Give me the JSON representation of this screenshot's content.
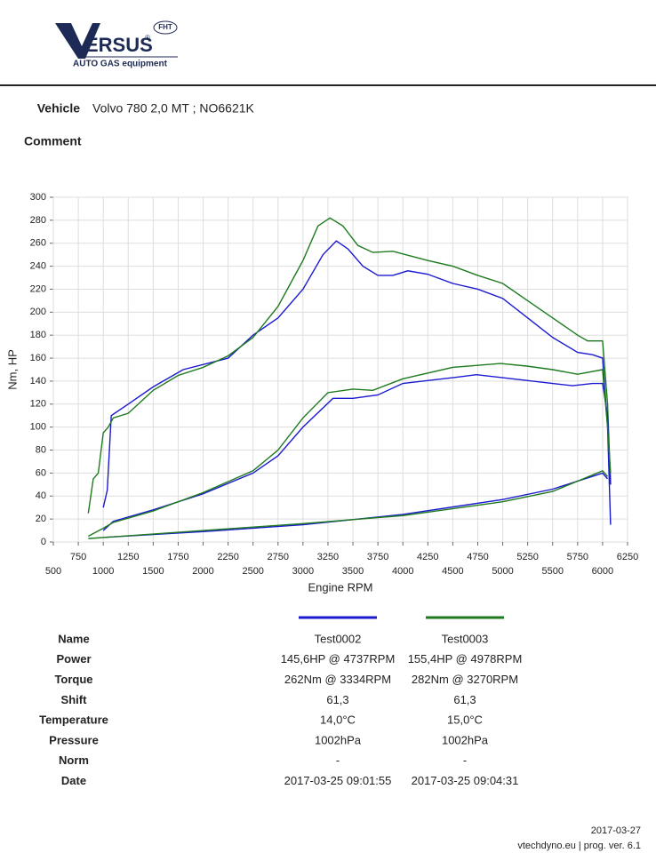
{
  "header": {
    "logo": "ERSUS",
    "badge": "FHT",
    "tagline": "AUTO GAS equipment",
    "reg": "®"
  },
  "vehicle": {
    "label": "Vehicle",
    "value": "Volvo 780 2,0 MT ; NO6621K"
  },
  "comment": {
    "label": "Comment"
  },
  "chart_data": {
    "type": "line",
    "xlabel": "Engine RPM",
    "ylabel": "Nm, HP",
    "grid": true,
    "xlim": [
      500,
      6250
    ],
    "ylim": [
      0,
      300
    ],
    "xticks": [
      500,
      750,
      1000,
      1250,
      1500,
      1750,
      2000,
      2250,
      2500,
      2750,
      3000,
      3250,
      3500,
      3750,
      4000,
      4250,
      4500,
      4750,
      5000,
      5250,
      5500,
      5750,
      6000,
      6250
    ],
    "yticks": [
      0,
      20,
      40,
      60,
      80,
      100,
      120,
      140,
      160,
      180,
      200,
      220,
      240,
      260,
      280,
      300
    ],
    "series": [
      {
        "color": "#1a1ad0",
        "x": [
          1000,
          1040,
          1080,
          1250,
          1500,
          1800,
          2250,
          2500,
          2750,
          3000,
          3200,
          3334,
          3450,
          3600,
          3750,
          3900,
          4050,
          4250,
          4500,
          4750,
          5000,
          5250,
          5500,
          5750,
          5900,
          6000,
          6050,
          6080
        ],
        "values": [
          30,
          45,
          110,
          120,
          135,
          150,
          160,
          180,
          195,
          220,
          250,
          262,
          255,
          240,
          232,
          232,
          236,
          233,
          225,
          220,
          212,
          195,
          178,
          165,
          163,
          160,
          100,
          15
        ]
      },
      {
        "color": "#1e7a1e",
        "x": [
          850,
          900,
          950,
          1000,
          1050,
          1100,
          1250,
          1500,
          1750,
          2000,
          2250,
          2500,
          2750,
          3000,
          3150,
          3270,
          3400,
          3550,
          3700,
          3900,
          4250,
          4500,
          4750,
          5000,
          5250,
          5500,
          5750,
          5850,
          6000,
          6050,
          6080
        ],
        "values": [
          25,
          55,
          60,
          95,
          100,
          108,
          112,
          132,
          145,
          152,
          162,
          178,
          205,
          245,
          275,
          282,
          275,
          258,
          252,
          253,
          245,
          240,
          232,
          225,
          210,
          195,
          180,
          175,
          175,
          120,
          50
        ]
      },
      {
        "color": "#1a1ad0",
        "x": [
          1000,
          1100,
          1500,
          2000,
          2500,
          2750,
          3000,
          3300,
          3500,
          3750,
          4000,
          4500,
          4737,
          5000,
          5500,
          5700,
          5900,
          6000,
          6050,
          6080
        ],
        "values": [
          10,
          18,
          28,
          42,
          60,
          75,
          100,
          125,
          125,
          128,
          138,
          143,
          145.6,
          143,
          138,
          136,
          138,
          138,
          110,
          50
        ]
      },
      {
        "color": "#1e7a1e",
        "x": [
          850,
          1000,
          1100,
          1500,
          2000,
          2500,
          2750,
          3000,
          3250,
          3500,
          3700,
          4000,
          4500,
          4978,
          5250,
          5500,
          5750,
          6000,
          6050,
          6080
        ],
        "values": [
          5,
          12,
          17,
          27,
          43,
          62,
          80,
          108,
          130,
          133,
          132,
          142,
          152,
          155.4,
          153,
          150,
          146,
          150,
          100,
          60
        ]
      },
      {
        "color": "#1a1ad0",
        "x": [
          1000,
          2000,
          3000,
          4000,
          5000,
          5500,
          6000,
          6050
        ],
        "values": [
          4,
          9,
          15,
          24,
          37,
          46,
          60,
          55
        ]
      },
      {
        "color": "#1e7a1e",
        "x": [
          850,
          2000,
          3000,
          4000,
          5000,
          5500,
          6000,
          6050
        ],
        "values": [
          3,
          10,
          16,
          23,
          35,
          44,
          62,
          57
        ]
      }
    ]
  },
  "table": {
    "rows": [
      [
        "Name",
        "Test0002",
        "Test0003"
      ],
      [
        "Power",
        "145,6HP @  4737RPM",
        "155,4HP @  4978RPM"
      ],
      [
        "Torque",
        "262Nm @ 3334RPM",
        "282Nm @ 3270RPM"
      ],
      [
        "Shift",
        "61,3",
        "61,3"
      ],
      [
        "Temperature",
        "14,0°C",
        "15,0°C"
      ],
      [
        "Pressure",
        "1002hPa",
        "1002hPa"
      ],
      [
        "Norm",
        "-",
        "-"
      ],
      [
        "Date",
        "2017-03-25 09:01:55",
        "2017-03-25 09:04:31"
      ]
    ]
  },
  "footer": {
    "date": "2017-03-27",
    "version": "vtechdyno.eu | prog. ver. 6.1"
  }
}
